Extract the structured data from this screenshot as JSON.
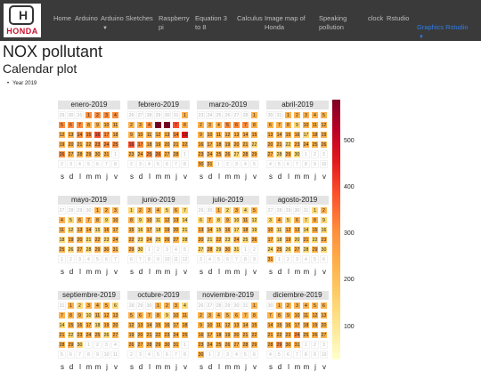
{
  "navbar": {
    "logo_text": "HONDA",
    "items": [
      {
        "label": "Home"
      },
      {
        "label": "Arduino"
      },
      {
        "label": "Arduino Sketches",
        "caret": "▼"
      },
      {
        "label": "Raspberry pi"
      },
      {
        "label": "Equation 3 to 8"
      },
      {
        "label": "Calculus"
      },
      {
        "label": "Image map of Honda"
      },
      {
        "label": "Speaking pollution"
      },
      {
        "label": "clock"
      },
      {
        "label": "Rstudio"
      },
      {
        "label": "Graphics Rstudio",
        "caret": "▼"
      }
    ]
  },
  "page": {
    "title": "NOX pollutant",
    "subtitle": "Calendar plot",
    "bullet": "Year 2019"
  },
  "chart_data": {
    "type": "heatmap",
    "year": 2019,
    "weekday_labels": [
      "s",
      "d",
      "l",
      "m",
      "m",
      "j",
      "v"
    ],
    "legend_ticks": [
      500,
      400,
      300,
      200,
      100
    ],
    "colors": [
      "#ffffcc",
      "#ffeda0",
      "#fed976",
      "#feb24c",
      "#fd8d3c",
      "#fc4e2a",
      "#e31a1c",
      "#bd0026",
      "#800026"
    ],
    "months": [
      {
        "name": "enero-2019",
        "days": 31,
        "prev_days": 31,
        "start": 3,
        "values": [
          310,
          320,
          330,
          280,
          300,
          330,
          280,
          250,
          240,
          230,
          220,
          240,
          260,
          290,
          300,
          340,
          290,
          250,
          240,
          230,
          250,
          260,
          280,
          300,
          320,
          290,
          270,
          240,
          230,
          250,
          240
        ]
      },
      {
        "name": "febrero-2019",
        "days": 28,
        "prev_days": 31,
        "start": 6,
        "values": [
          250,
          240,
          270,
          330,
          520,
          560,
          380,
          270,
          250,
          230,
          220,
          240,
          260,
          320,
          420,
          380,
          300,
          270,
          250,
          240,
          230,
          250,
          260,
          270,
          290,
          330,
          250,
          220
        ]
      },
      {
        "name": "marzo-2019",
        "days": 31,
        "prev_days": 28,
        "start": 6,
        "values": [
          250,
          240,
          230,
          260,
          300,
          320,
          280,
          250,
          230,
          220,
          240,
          250,
          230,
          260,
          240,
          220,
          230,
          250,
          240,
          230,
          220,
          210,
          220,
          230,
          230,
          220,
          210,
          220,
          230,
          220,
          230
        ]
      },
      {
        "name": "abril-2019",
        "days": 30,
        "prev_days": 31,
        "start": 2,
        "values": [
          230,
          220,
          240,
          250,
          260,
          240,
          230,
          220,
          210,
          220,
          230,
          240,
          220,
          230,
          220,
          220,
          210,
          220,
          220,
          230,
          220,
          210,
          220,
          230,
          230,
          220,
          220,
          210,
          220,
          210
        ]
      },
      {
        "name": "mayo-2019",
        "days": 31,
        "prev_days": 30,
        "start": 4,
        "values": [
          220,
          230,
          240,
          220,
          210,
          220,
          230,
          220,
          210,
          220,
          220,
          210,
          220,
          220,
          210,
          220,
          230,
          210,
          220,
          220,
          210,
          220,
          210,
          220,
          220,
          210,
          220,
          210,
          220,
          220,
          230
        ]
      },
      {
        "name": "junio-2019",
        "days": 30,
        "prev_days": 31,
        "start": 0,
        "values": [
          210,
          220,
          230,
          220,
          210,
          220,
          210,
          220,
          210,
          220,
          210,
          220,
          220,
          210,
          220,
          210,
          220,
          210,
          220,
          220,
          210,
          220,
          210,
          220,
          210,
          220,
          220,
          210,
          220,
          210
        ]
      },
      {
        "name": "julio-2019",
        "days": 31,
        "prev_days": 30,
        "start": 2,
        "values": [
          220,
          210,
          220,
          210,
          220,
          210,
          220,
          210,
          220,
          210,
          220,
          210,
          220,
          220,
          210,
          220,
          210,
          220,
          210,
          220,
          210,
          220,
          210,
          220,
          210,
          220,
          210,
          220,
          210,
          220,
          210
        ]
      },
      {
        "name": "agosto-2019",
        "days": 31,
        "prev_days": 31,
        "start": 5,
        "values": [
          210,
          220,
          210,
          220,
          210,
          220,
          210,
          220,
          210,
          220,
          210,
          220,
          220,
          210,
          220,
          210,
          220,
          210,
          220,
          210,
          220,
          210,
          220,
          210,
          220,
          210,
          220,
          210,
          220,
          210,
          220
        ]
      },
      {
        "name": "septiembre-2019",
        "days": 30,
        "prev_days": 31,
        "start": 1,
        "values": [
          220,
          210,
          220,
          230,
          220,
          210,
          220,
          230,
          220,
          210,
          220,
          230,
          220,
          210,
          220,
          230,
          220,
          210,
          220,
          230,
          220,
          210,
          220,
          230,
          220,
          210,
          220,
          230,
          220,
          210
        ]
      },
      {
        "name": "octubre-2019",
        "days": 31,
        "prev_days": 30,
        "start": 3,
        "values": [
          220,
          230,
          220,
          210,
          220,
          230,
          240,
          220,
          210,
          220,
          230,
          220,
          240,
          220,
          230,
          240,
          220,
          230,
          220,
          240,
          250,
          230,
          220,
          240,
          230,
          220,
          240,
          230,
          220,
          230,
          240
        ]
      },
      {
        "name": "noviembre-2019",
        "days": 30,
        "prev_days": 31,
        "start": 6,
        "values": [
          230,
          240,
          220,
          230,
          240,
          230,
          220,
          240,
          230,
          220,
          240,
          230,
          250,
          240,
          230,
          220,
          240,
          250,
          230,
          240,
          230,
          250,
          240,
          230,
          250,
          240,
          230,
          250,
          240,
          230
        ]
      },
      {
        "name": "diciembre-2019",
        "days": 31,
        "prev_days": 30,
        "start": 1,
        "values": [
          240,
          250,
          260,
          250,
          240,
          260,
          250,
          240,
          260,
          250,
          270,
          260,
          250,
          240,
          260,
          270,
          260,
          250,
          270,
          260,
          250,
          270,
          260,
          280,
          260,
          250,
          270,
          260,
          280,
          270,
          260
        ]
      }
    ]
  }
}
